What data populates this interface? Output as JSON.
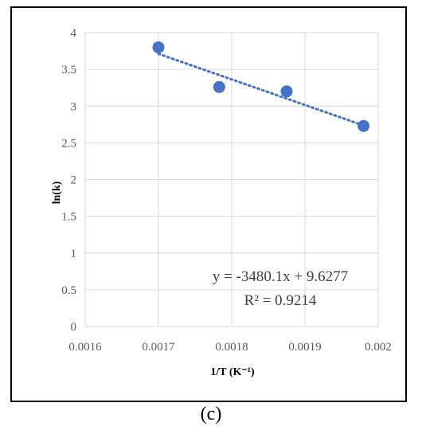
{
  "caption": "(c)",
  "chart_data": {
    "type": "scatter",
    "title": "",
    "xlabel": "1/T (K⁻¹)",
    "ylabel": "ln(k)",
    "xlim": [
      0.0016,
      0.002
    ],
    "ylim": [
      0,
      4
    ],
    "x_ticks": [
      "0.0016",
      "0.0017",
      "0.0018",
      "0.0019",
      "0.002"
    ],
    "y_ticks": [
      "0",
      "0.5",
      "1",
      "1.5",
      "2",
      "2.5",
      "3",
      "3.5",
      "4"
    ],
    "grid": true,
    "legend": false,
    "series": [
      {
        "x": [
          0.0017,
          0.001783,
          0.001875,
          0.00198
        ],
        "y": [
          3.8,
          3.26,
          3.2,
          2.73
        ],
        "color": "#4472C4",
        "marker": "circle"
      }
    ],
    "trendline": {
      "type": "linear",
      "slope": -3480.1,
      "intercept": 9.6277,
      "style": "dotted",
      "color": "#4472C4",
      "equation": "y = -3480.1x + 9.6277",
      "r_squared": "R² = 0.9214"
    }
  }
}
